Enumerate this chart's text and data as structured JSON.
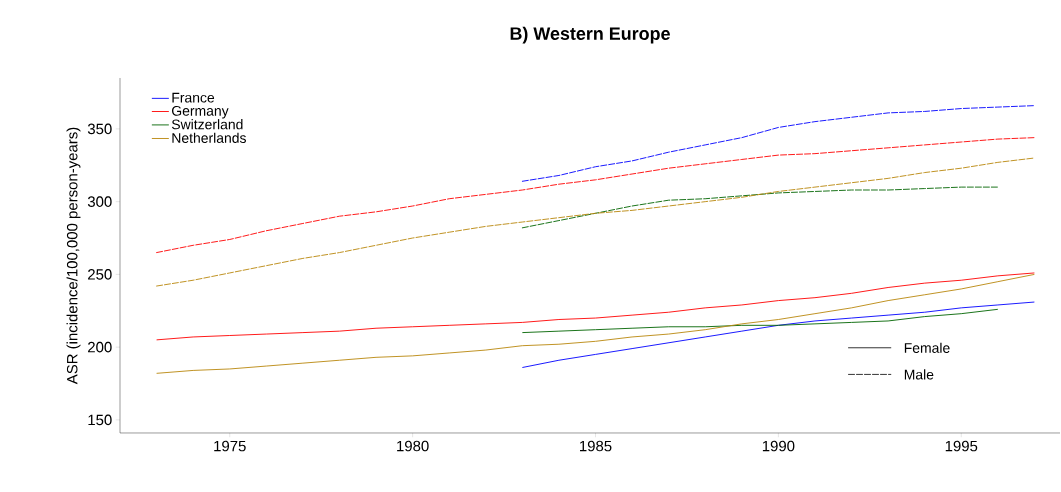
{
  "chart_data": {
    "type": "line",
    "title": "B) Western Europe",
    "ylabel": "ASR (incidence/100,000 person-years)",
    "xlim": [
      1972,
      1997.7
    ],
    "ylim": [
      141,
      385
    ],
    "xticks": [
      1975,
      1980,
      1985,
      1990,
      1995
    ],
    "yticks": [
      150,
      200,
      250,
      300,
      350
    ],
    "legend": "top left",
    "grid": false,
    "annotations": [
      "Female",
      "Male"
    ],
    "series": [
      {
        "name": "France",
        "color": "#0000ff",
        "line_style": "solid",
        "x": [
          1983,
          1984,
          1985,
          1986,
          1987,
          1988,
          1989,
          1990,
          1991,
          1992,
          1993,
          1994,
          1995,
          1996,
          1997
        ],
        "values": [
          186,
          191,
          195,
          199,
          203,
          207,
          211,
          215,
          218,
          220,
          222,
          224,
          227,
          229,
          231
        ]
      },
      {
        "name": "Germany",
        "color": "#ff0000",
        "line_style": "solid",
        "x": [
          1973,
          1974,
          1975,
          1976,
          1977,
          1978,
          1979,
          1980,
          1981,
          1982,
          1983,
          1984,
          1985,
          1986,
          1987,
          1988,
          1989,
          1990,
          1991,
          1992,
          1993,
          1994,
          1995,
          1996,
          1997
        ],
        "values": [
          205,
          207,
          208,
          209,
          210,
          211,
          213,
          214,
          215,
          216,
          217,
          219,
          220,
          222,
          224,
          227,
          229,
          232,
          234,
          237,
          241,
          244,
          246,
          249,
          251
        ]
      },
      {
        "name": "Switzerland",
        "color": "#006400",
        "line_style": "solid",
        "x": [
          1983,
          1984,
          1985,
          1986,
          1987,
          1988,
          1989,
          1990,
          1991,
          1992,
          1993,
          1994,
          1995,
          1996
        ],
        "values": [
          210,
          211,
          212,
          213,
          214,
          214,
          215,
          215,
          216,
          217,
          218,
          221,
          223,
          226
        ]
      },
      {
        "name": "Netherlands",
        "color": "#b8860b",
        "line_style": "solid",
        "x": [
          1973,
          1974,
          1975,
          1976,
          1977,
          1978,
          1979,
          1980,
          1981,
          1982,
          1983,
          1984,
          1985,
          1986,
          1987,
          1988,
          1989,
          1990,
          1991,
          1992,
          1993,
          1994,
          1995,
          1996,
          1997
        ],
        "values": [
          182,
          184,
          185,
          187,
          189,
          191,
          193,
          194,
          196,
          198,
          201,
          202,
          204,
          207,
          209,
          212,
          216,
          219,
          223,
          227,
          232,
          236,
          240,
          245,
          250
        ]
      },
      {
        "color": "#0000ff",
        "line_style": "dashed",
        "x": [
          1983,
          1984,
          1985,
          1986,
          1987,
          1988,
          1989,
          1990,
          1991,
          1992,
          1993,
          1994,
          1995,
          1996,
          1997
        ],
        "values": [
          314,
          318,
          324,
          328,
          334,
          339,
          344,
          351,
          355,
          358,
          361,
          362,
          364,
          365,
          366
        ]
      },
      {
        "color": "#ff0000",
        "line_style": "dashed",
        "x": [
          1973,
          1974,
          1975,
          1976,
          1977,
          1978,
          1979,
          1980,
          1981,
          1982,
          1983,
          1984,
          1985,
          1986,
          1987,
          1988,
          1989,
          1990,
          1991,
          1992,
          1993,
          1994,
          1995,
          1996,
          1997
        ],
        "values": [
          265,
          270,
          274,
          280,
          285,
          290,
          293,
          297,
          302,
          305,
          308,
          312,
          315,
          319,
          323,
          326,
          329,
          332,
          333,
          335,
          337,
          339,
          341,
          343,
          344
        ]
      },
      {
        "color": "#006400",
        "line_style": "dashed",
        "x": [
          1983,
          1984,
          1985,
          1986,
          1987,
          1988,
          1989,
          1990,
          1991,
          1992,
          1993,
          1994,
          1995,
          1996
        ],
        "values": [
          282,
          287,
          292,
          297,
          301,
          302,
          304,
          306,
          307,
          308,
          308,
          309,
          310,
          310
        ]
      },
      {
        "color": "#b8860b",
        "line_style": "dashed",
        "x": [
          1973,
          1974,
          1975,
          1976,
          1977,
          1978,
          1979,
          1980,
          1981,
          1982,
          1983,
          1984,
          1985,
          1986,
          1987,
          1988,
          1989,
          1990,
          1991,
          1992,
          1993,
          1994,
          1995,
          1996,
          1997
        ],
        "values": [
          242,
          246,
          251,
          256,
          261,
          265,
          270,
          275,
          279,
          283,
          286,
          289,
          292,
          294,
          297,
          300,
          303,
          307,
          310,
          313,
          316,
          320,
          323,
          327,
          330
        ]
      }
    ]
  }
}
